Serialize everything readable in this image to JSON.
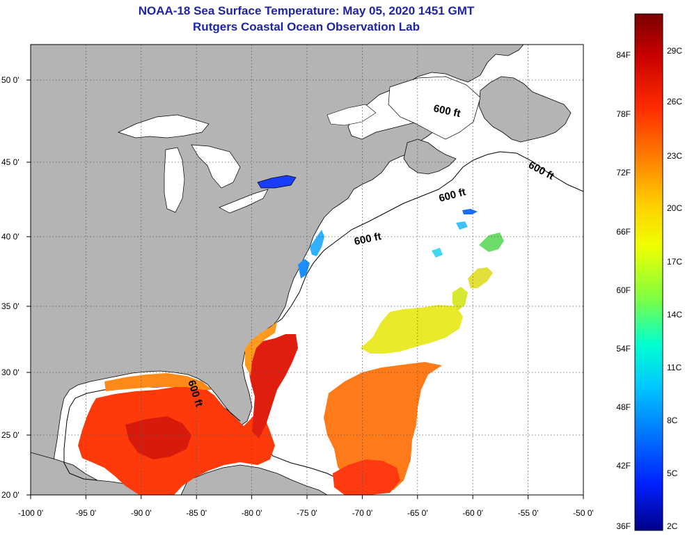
{
  "title": {
    "line1": "NOAA-18 Sea Surface Temperature:  May 05, 2020 1451 GMT",
    "line2": "Rutgers Coastal Ocean Observation Lab"
  },
  "map": {
    "lon_ticks": [
      {
        "value": -100,
        "label": "-100 0'"
      },
      {
        "value": -95,
        "label": "-95 0'"
      },
      {
        "value": -90,
        "label": "-90 0'"
      },
      {
        "value": -85,
        "label": "-85 0'"
      },
      {
        "value": -80,
        "label": "-80 0'"
      },
      {
        "value": -75,
        "label": "-75 0'"
      },
      {
        "value": -70,
        "label": "-70 0'"
      },
      {
        "value": -65,
        "label": "-65 0'"
      },
      {
        "value": -60,
        "label": "-60 0'"
      },
      {
        "value": -55,
        "label": "-55 0'"
      },
      {
        "value": -50,
        "label": "-50 0'"
      }
    ],
    "lat_ticks": [
      {
        "value": 50,
        "label": "50 0'"
      },
      {
        "value": 45,
        "label": "45 0'"
      },
      {
        "value": 40,
        "label": "40 0'"
      },
      {
        "value": 35,
        "label": "35 0'"
      },
      {
        "value": 30,
        "label": "30 0'"
      },
      {
        "value": 25,
        "label": "25 0'"
      },
      {
        "value": 20,
        "label": "20 0'"
      }
    ],
    "contour_label": "600 ft",
    "colors": {
      "land": "#b4b4b4",
      "ocean": "#ffffff",
      "coastline": "#000000",
      "grid": "#555555"
    }
  },
  "colorbar": {
    "fahrenheit_labels": [
      "84F",
      "78F",
      "72F",
      "66F",
      "60F",
      "54F",
      "48F",
      "42F",
      "36F"
    ],
    "celsius_labels": [
      "29C",
      "26C",
      "23C",
      "20C",
      "17C",
      "14C",
      "11C",
      "8C",
      "5C",
      "2C"
    ],
    "gradient_colors": [
      "#7a0000",
      "#c80000",
      "#ff2a00",
      "#ff8000",
      "#ffd000",
      "#f0ff00",
      "#80ff40",
      "#00ffd0",
      "#00c8ff",
      "#0070ff",
      "#0020ff",
      "#00008a"
    ]
  }
}
